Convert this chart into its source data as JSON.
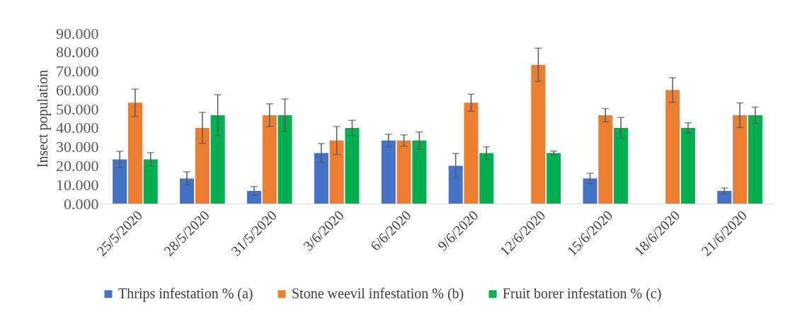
{
  "chart_data": {
    "type": "bar",
    "ylabel": "Insect population",
    "categories": [
      "25/5/2020",
      "28/5/2020",
      "31/5/2020",
      "3/6/2020",
      "6/6/2020",
      "9/6/2020",
      "12/6/2020",
      "15/6/2020",
      "18/6/2020",
      "21/6/2020"
    ],
    "series": [
      {
        "name": "Thrips infestation % (a)",
        "color": "#4472c4",
        "values": [
          23.3,
          13.3,
          6.7,
          26.7,
          33.3,
          20.0,
          0,
          13.3,
          0,
          6.7
        ],
        "errors": [
          4.3,
          3.5,
          2.3,
          5.0,
          3.3,
          6.5,
          null,
          2.7,
          null,
          1.5
        ]
      },
      {
        "name": "Stone weevil infestation % (b)",
        "color": "#ed7d31",
        "values": [
          53.3,
          40.0,
          46.7,
          33.3,
          33.3,
          53.3,
          73.3,
          46.7,
          60.0,
          46.7
        ],
        "errors": [
          7.2,
          8.2,
          6.0,
          7.4,
          3.0,
          4.5,
          8.8,
          3.5,
          6.5,
          6.5
        ]
      },
      {
        "name": "Fruit borer infestation % (c)",
        "color": "#00b050",
        "values": [
          23.3,
          46.7,
          46.7,
          40.0,
          33.3,
          26.7,
          26.7,
          40.0,
          40.0,
          46.7
        ],
        "errors": [
          3.6,
          10.8,
          8.6,
          4.0,
          4.5,
          3.3,
          1.0,
          5.5,
          2.7,
          4.3
        ]
      }
    ],
    "ylim": [
      0,
      90
    ],
    "yticks": [
      {
        "value": 0,
        "label": "0.000"
      },
      {
        "value": 10,
        "label": "10.000"
      },
      {
        "value": 20,
        "label": "20.000"
      },
      {
        "value": 30,
        "label": "30.000"
      },
      {
        "value": 40,
        "label": "40.000"
      },
      {
        "value": 50,
        "label": "50.000"
      },
      {
        "value": 60,
        "label": "60.000"
      },
      {
        "value": 70,
        "label": "70.000"
      },
      {
        "value": 80,
        "label": "80.000"
      },
      {
        "value": 90,
        "label": "90.000"
      }
    ],
    "grid": false,
    "legend": "bottom"
  }
}
